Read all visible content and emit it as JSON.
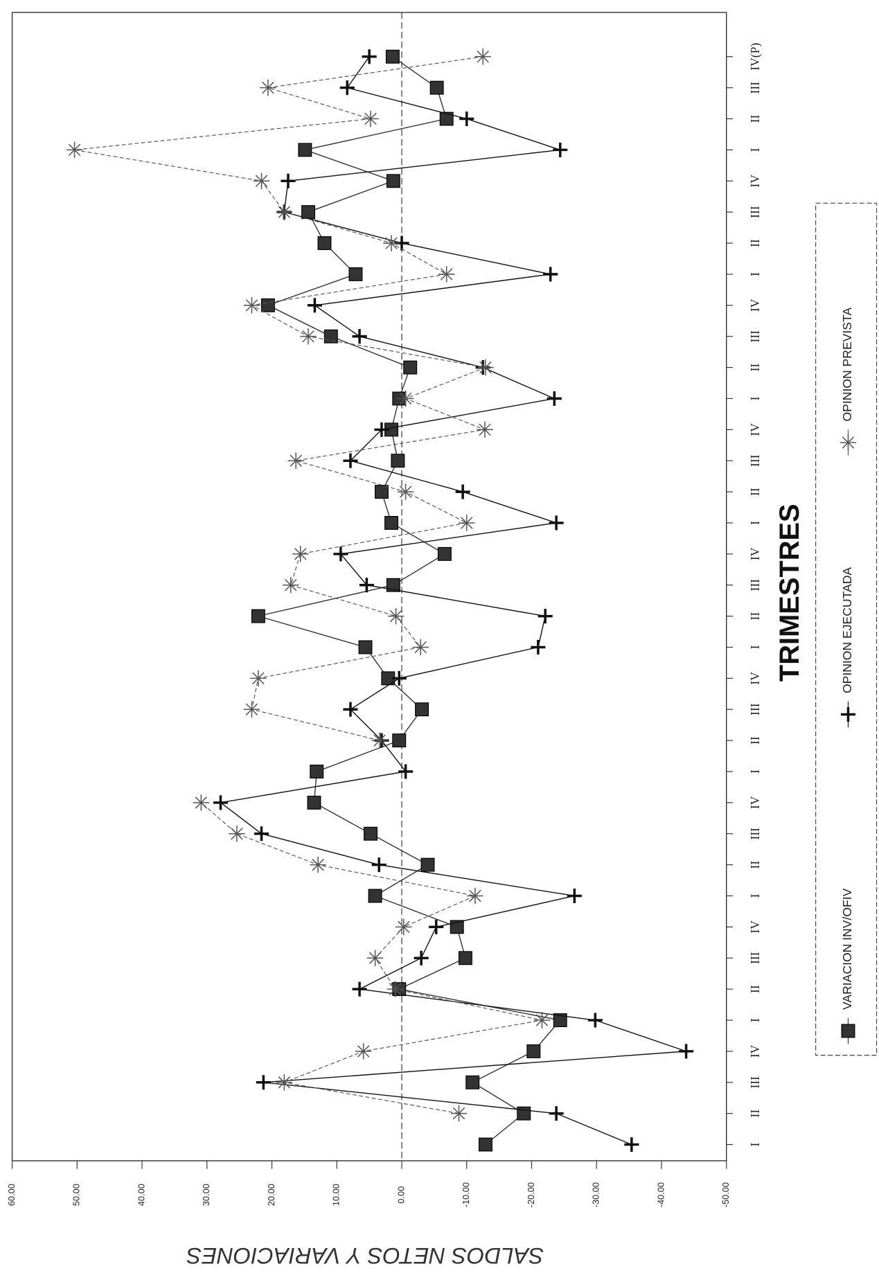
{
  "chart_data": {
    "type": "line",
    "x_label": "TRIMESTRES",
    "y_label": "SALDOS NETOS Y VARIACIONES",
    "categories": [
      "I",
      "II",
      "III",
      "IV",
      "I",
      "II",
      "III",
      "IV",
      "I",
      "II",
      "III",
      "IV",
      "I",
      "II",
      "III",
      "IV",
      "I",
      "II",
      "III",
      "IV",
      "I",
      "II",
      "III",
      "IV",
      "I",
      "II",
      "III",
      "IV",
      "I",
      "II",
      "III",
      "IV",
      "I",
      "II",
      "III",
      "IV(P)"
    ],
    "series": [
      {
        "name": "VARIACION INV/OFIV",
        "color": "#333333",
        "marker": "square",
        "values": [
          -12.9,
          -18.8,
          -10.9,
          -20.3,
          -24.4,
          0.4,
          -9.8,
          -8.5,
          4.1,
          -4,
          4.8,
          13.5,
          13.1,
          0.4,
          -3.1,
          2.1,
          5.6,
          22.1,
          1.3,
          -6.6,
          1.6,
          3.1,
          0.6,
          1.6,
          0.4,
          -1.3,
          10.9,
          20.6,
          7.1,
          11.9,
          14.4,
          1.3,
          14.9,
          -6.9,
          -5.4,
          1.4
        ]
      },
      {
        "name": "OPINION EJECUTADA",
        "color": "#111111",
        "marker": "plus",
        "values": [
          -35.4,
          -23.8,
          21.3,
          -43.8,
          -29.8,
          6.5,
          -3,
          -5.3,
          -26.6,
          3.5,
          21.6,
          27.9,
          -0.6,
          3.1,
          7.9,
          0.4,
          -21,
          -22.1,
          5.4,
          9.4,
          -23.8,
          -9.4,
          7.9,
          3.1,
          -23.5,
          -12.5,
          6.5,
          13.4,
          -22.9,
          0,
          18.1,
          17.5,
          -24.4,
          -10,
          8.4,
          5
        ]
      },
      {
        "name": "OPINION PREVISTA",
        "color": "#555555",
        "marker": "star",
        "values": [
          null,
          -8.8,
          18.1,
          5.9,
          -21.6,
          1,
          4.1,
          -0.3,
          -11.3,
          12.9,
          25.4,
          30.9,
          null,
          3.4,
          23.1,
          22.1,
          -2.9,
          0.9,
          17.1,
          15.6,
          -10,
          -0.6,
          16.3,
          -12.8,
          -0.6,
          -12.9,
          14.4,
          23.1,
          -6.9,
          1.6,
          18.1,
          21.6,
          50.4,
          4.8,
          20.6,
          -12.5
        ]
      }
    ],
    "ylim": [
      -50,
      60
    ],
    "yticks": [
      {
        "value": -50,
        "label": "-50.00"
      },
      {
        "value": -40,
        "label": "-40.00"
      },
      {
        "value": -30,
        "label": "-30.00"
      },
      {
        "value": -20,
        "label": "-20.00"
      },
      {
        "value": -10,
        "label": "-10.00"
      },
      {
        "value": 0,
        "label": "0.00"
      },
      {
        "value": 10,
        "label": "10.00"
      },
      {
        "value": 20,
        "label": "20.00"
      },
      {
        "value": 30,
        "label": "30.00"
      },
      {
        "value": 40,
        "label": "40.00"
      },
      {
        "value": 50,
        "label": "50.00"
      },
      {
        "value": 60,
        "label": "60.00"
      }
    ],
    "zero_line": true,
    "legend": "right"
  }
}
